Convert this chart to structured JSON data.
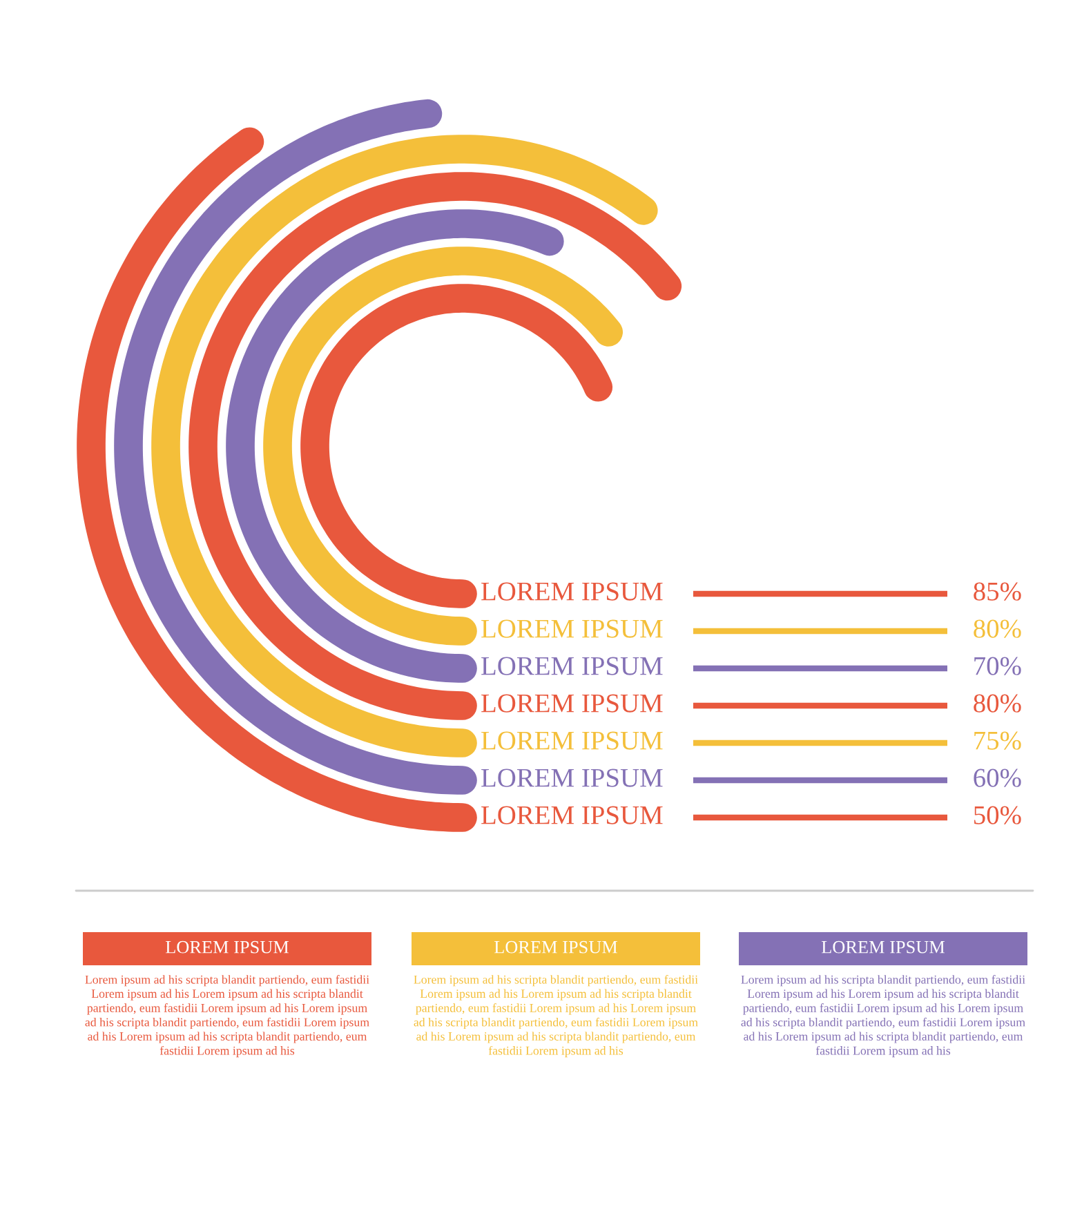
{
  "chart_data": {
    "type": "other",
    "categories": [
      "LOREM IPSUM",
      "LOREM IPSUM",
      "LOREM IPSUM",
      "LOREM IPSUM",
      "LOREM IPSUM",
      "LOREM IPSUM",
      "LOREM IPSUM"
    ],
    "values": [
      85,
      80,
      70,
      80,
      75,
      60,
      50
    ],
    "value_labels": [
      "85%",
      "80%",
      "70%",
      "80%",
      "75%",
      "60%",
      "50%"
    ],
    "colors": [
      "#e8583d",
      "#f4bf3a",
      "#8471b5",
      "#e8583d",
      "#f4bf3a",
      "#8471b5",
      "#e8583d"
    ],
    "annotations": [
      "LOREM IPSUM",
      "Lorem ipsum ad his scripta blandit partiendo, eum fastidii\nLorem ipsum ad his Lorem ipsum ad his scripta blandit\npartiendo, eum fastidii Lorem ipsum ad his Lorem ipsum\nad his scripta blandit partiendo, eum fastidii Lorem ipsum\nad his Lorem ipsum ad his scripta blandit partiendo, eum\nfastidii Lorem ipsum ad his",
      "LOREM IPSUM",
      "Lorem ipsum ad his scripta blandit partiendo, eum fastidii\nLorem ipsum ad his Lorem ipsum ad his scripta blandit\npartiendo, eum fastidii Lorem ipsum ad his Lorem ipsum\nad his scripta blandit partiendo, eum fastidii Lorem ipsum\nad his Lorem ipsum ad his scripta blandit partiendo, eum\nfastidii Lorem ipsum ad his",
      "LOREM IPSUM",
      "Lorem ipsum ad his scripta blandit partiendo, eum fastidii\nLorem ipsum ad his Lorem ipsum ad his scripta blandit\npartiendo, eum fastidii Lorem ipsum ad his Lorem ipsum\nad his scripta blandit partiendo, eum fastidii Lorem ipsum\nad his Lorem ipsum ad his scripta blandit partiendo, eum\nfastidii Lorem ipsum ad his"
    ]
  }
}
